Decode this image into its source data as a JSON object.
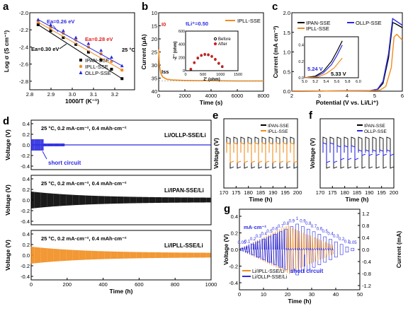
{
  "chart_data": [
    {
      "panel": "a",
      "type": "scatter",
      "xlabel": "1000/T (K⁻¹)",
      "ylabel": "Log σ (S cm⁻¹)",
      "xlim": [
        2.8,
        3.3
      ],
      "ylim": [
        -2.9,
        -2.0
      ],
      "xticks": [
        "2.8",
        "2.9",
        "3.0",
        "3.1",
        "3.2"
      ],
      "yticks": [
        "-2.0",
        "-2.2",
        "-2.4",
        "-2.6",
        "-2.8"
      ],
      "temperature_label": "25 °C",
      "annotations": [
        "Ea=0.26 eV",
        "Ea=0.28 eV",
        "Ea=0.30 eV"
      ],
      "x": [
        2.84,
        2.9,
        2.96,
        3.02,
        3.08,
        3.14,
        3.19,
        3.24
      ],
      "series": [
        {
          "name": "IPAN-SSE",
          "color": "#000000",
          "marker": "square",
          "y": [
            -2.14,
            -2.21,
            -2.29,
            -2.37,
            -2.46,
            -2.55,
            -2.66,
            -2.77
          ]
        },
        {
          "name": "IPLL-SSE",
          "color": "#f08c1e",
          "marker": "circle",
          "y": [
            -2.11,
            -2.17,
            -2.24,
            -2.32,
            -2.4,
            -2.48,
            -2.57,
            -2.67
          ]
        },
        {
          "name": "OLLP-SSE",
          "color": "#2a2ae0",
          "marker": "triangle",
          "y": [
            -2.08,
            -2.14,
            -2.21,
            -2.29,
            -2.36,
            -2.44,
            -2.52,
            -2.62
          ]
        }
      ]
    },
    {
      "panel": "b",
      "type": "line",
      "xlabel": "Time (s)",
      "ylabel": "Current (μA)",
      "xlim": [
        0,
        8000
      ],
      "ylim": [
        10,
        40
      ],
      "xticks": [
        "0",
        "2000",
        "4000",
        "6000",
        "8000"
      ],
      "yticks": [
        "10",
        "15",
        "20",
        "25",
        "30",
        "35",
        "40"
      ],
      "tli_label": "tLi⁺=0.50",
      "i0_label": "I0",
      "iss_label": "Iss",
      "series": [
        {
          "name": "IPLL-SSE",
          "color": "#f08c1e",
          "x": [
            0,
            60,
            150,
            300,
            600,
            1000,
            1500,
            2000,
            3000,
            4000,
            6000,
            8000
          ],
          "y": [
            26,
            20,
            17,
            15.5,
            14.6,
            14.3,
            14.2,
            14.1,
            14.0,
            14.0,
            13.9,
            13.9
          ]
        }
      ],
      "inset": {
        "type": "scatter",
        "xlabel": "Z' (ohm)",
        "ylabel": "-Z'' (ohm)",
        "xlim": [
          0,
          1500
        ],
        "ylim": [
          0,
          600
        ],
        "xticks": [
          "0",
          "500",
          "1000",
          "1500"
        ],
        "yticks": [
          "0",
          "200",
          "400",
          "600"
        ],
        "series": [
          {
            "name": "Before",
            "color": "#000000",
            "x": [
              150,
              250,
              350,
              450,
              550,
              650,
              750,
              850,
              950,
              1050
            ],
            "y": [
              20,
              120,
              190,
              230,
              245,
              240,
              215,
              170,
              110,
              60
            ]
          },
          {
            "name": "After",
            "color": "#d42020",
            "x": [
              150,
              250,
              350,
              450,
              550,
              650,
              750,
              850,
              950,
              1050
            ],
            "y": [
              25,
              125,
              195,
              235,
              250,
              245,
              220,
              175,
              115,
              65
            ]
          }
        ]
      }
    },
    {
      "panel": "c",
      "type": "line",
      "xlabel": "Potential (V vs. Li/Li⁺)",
      "ylabel": "Current (mA cm⁻²)",
      "xlim": [
        2,
        6
      ],
      "ylim": [
        0,
        2.0
      ],
      "xticks": [
        "2",
        "3",
        "4",
        "5",
        "6"
      ],
      "yticks": [
        "0.0",
        "0.5",
        "1.0",
        "1.5",
        "2.0"
      ],
      "annotations": [
        "5.24 V",
        "5.33 V"
      ],
      "series": [
        {
          "name": "IPAN-SSE",
          "color": "#000000",
          "x": [
            2,
            4.8,
            5.1,
            5.3,
            5.5,
            5.65,
            5.75,
            6.0
          ],
          "y": [
            0,
            0.01,
            0.04,
            0.2,
            0.85,
            1.75,
            1.72,
            1.62
          ]
        },
        {
          "name": "OLLP-SSE",
          "color": "#2a2ae0",
          "x": [
            2,
            4.8,
            5.1,
            5.3,
            5.5,
            5.65,
            5.75,
            6.0
          ],
          "y": [
            0,
            0.01,
            0.05,
            0.25,
            0.95,
            1.85,
            1.8,
            1.68
          ]
        },
        {
          "name": "IPLL-SSE",
          "color": "#f08c1e",
          "x": [
            2,
            4.8,
            5.2,
            5.4,
            5.6,
            5.7,
            5.8,
            6.0
          ],
          "y": [
            0,
            0.01,
            0.03,
            0.12,
            0.6,
            1.38,
            1.45,
            1.3
          ]
        }
      ],
      "inset": {
        "xlim": [
          5.0,
          6.0
        ],
        "ylim": [
          0,
          0.5
        ],
        "xticks": [
          "5.0",
          "5.2",
          "5.4",
          "5.6",
          "5.8",
          "6.0"
        ],
        "yticks": [
          "0.0",
          "0.2",
          "0.4"
        ]
      }
    },
    {
      "panel": "d",
      "type": "line",
      "xlabel": "Time (h)",
      "ylabel": "Voltage (V)",
      "xlim": [
        0,
        1000
      ],
      "xticks": [
        "0",
        "200",
        "400",
        "600",
        "800",
        "1000"
      ],
      "yticks": [
        "0.4",
        "0.2",
        "0.0",
        "-0.2",
        "-0.4"
      ],
      "subplots": [
        {
          "condition": "25 °C, 0.2 mA·cm⁻², 0.4 mAh·cm⁻²",
          "label": "Li/OLLP-SSE/Li",
          "color": "#2a2ae0",
          "note": "short circuit",
          "end_h": 190
        },
        {
          "condition": "25 °C, 0.2 mA·cm⁻², 0.4 mAh·cm⁻²",
          "label": "Li/IPAN-SSE/Li",
          "color": "#000000",
          "end_h": 1000
        },
        {
          "condition": "25 °C, 0.2 mA·cm⁻², 0.4 mAh·cm⁻²",
          "label": "Li/IPLL-SSE/Li",
          "color": "#f08c1e",
          "end_h": 1000
        }
      ]
    },
    {
      "panel": "e",
      "type": "line",
      "xlabel": "Time (h)",
      "ylabel": "Voltage (V)",
      "xlim": [
        170,
        200
      ],
      "xticks": [
        "170",
        "175",
        "180",
        "185",
        "190",
        "195",
        "200"
      ],
      "series": [
        {
          "name": "IPAN-SSE",
          "color": "#000000"
        },
        {
          "name": "IPLL-SSE",
          "color": "#f08c1e"
        }
      ]
    },
    {
      "panel": "f",
      "type": "line",
      "xlabel": "Time (h)",
      "ylabel": "Voltage (V)",
      "xlim": [
        170,
        200
      ],
      "xticks": [
        "170",
        "175",
        "180",
        "185",
        "190",
        "195",
        "200"
      ],
      "series": [
        {
          "name": "IPAN-SSE",
          "color": "#000000"
        },
        {
          "name": "OLLP-SSE",
          "color": "#2a2ae0"
        }
      ]
    },
    {
      "panel": "g",
      "type": "line",
      "xlabel": "Time (h)",
      "ylabel": "Voltage (V)",
      "y2label": "Current (mA)",
      "xlim": [
        0,
        50
      ],
      "xticks": [
        "0",
        "10",
        "20",
        "30",
        "40",
        "50"
      ],
      "yticks": [
        "0.4",
        "0.2",
        "0.0",
        "-0.2",
        "-0.4"
      ],
      "y2ticks": [
        "1.2",
        "0.8",
        "0.4",
        "0.0",
        "-0.4",
        "-0.8",
        "-1.2"
      ],
      "current_unit": "mA·cm⁻²",
      "current_steps": [
        "0.05",
        "0.1",
        "0.2",
        "0.3",
        "0.4",
        "0.5",
        "0.6",
        "0.7",
        "0.8",
        "0.9",
        "1",
        "0.9",
        "0.8",
        "0.7",
        "0.6",
        "0.5",
        "0.4",
        "0.3",
        "0.2",
        "0.1",
        "0.05"
      ],
      "note": "short circuit",
      "series": [
        {
          "name": "Li/IPLL-SSE/Li",
          "color": "#f08c1e"
        },
        {
          "name": "Li/OLLP-SSE/Li",
          "color": "#2a2ae0"
        }
      ]
    }
  ]
}
